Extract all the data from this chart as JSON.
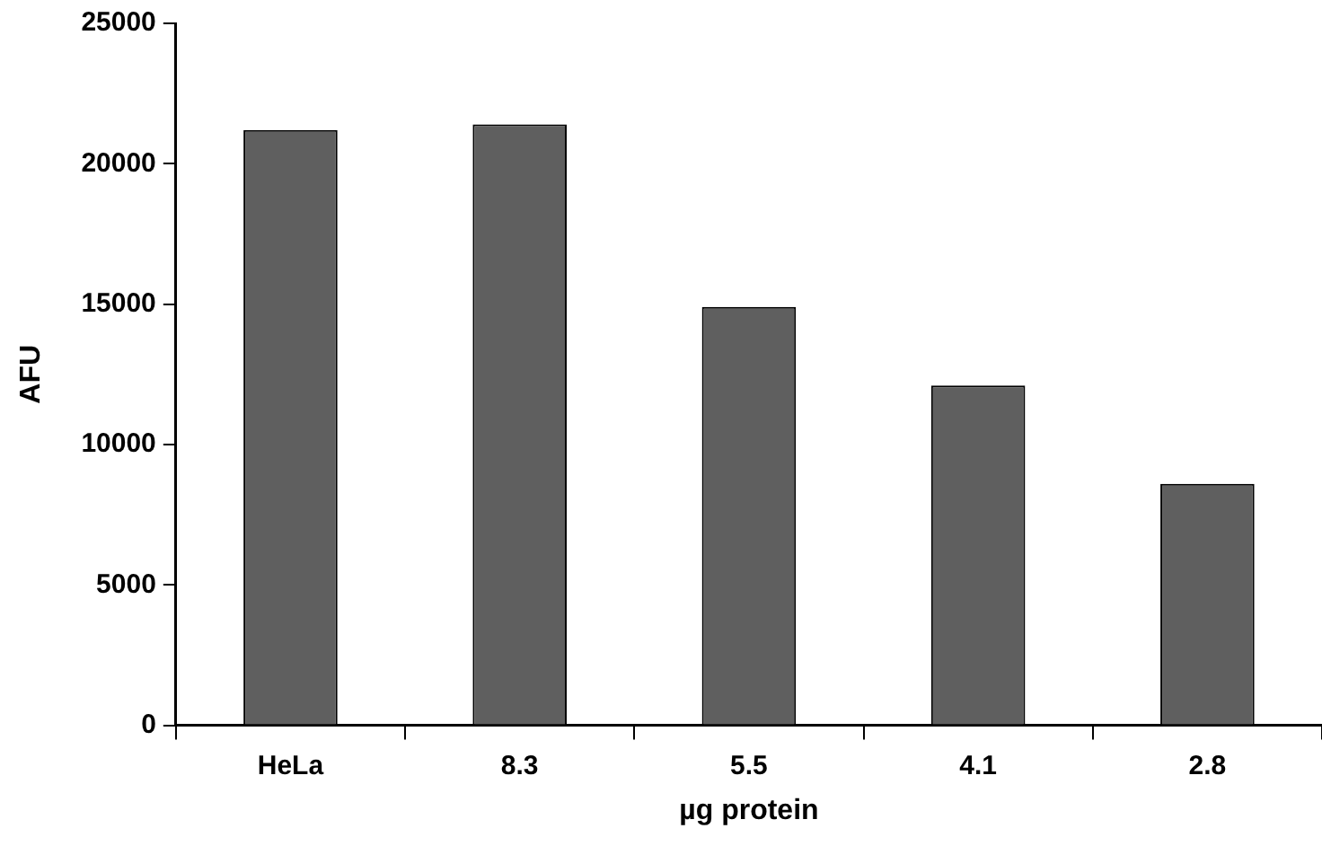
{
  "chart_data": {
    "type": "bar",
    "xlabel": "µg protein",
    "ylabel": "AFU",
    "categories": [
      "HeLa",
      "8.3",
      "5.5",
      "4.1",
      "2.8"
    ],
    "values": [
      21200,
      21400,
      14900,
      12100,
      8600
    ],
    "color": "#5f5f5f",
    "ylim": [
      0,
      25000
    ],
    "yticks": [
      0,
      5000,
      10000,
      15000,
      20000,
      25000
    ],
    "grid": false,
    "legend": false
  }
}
